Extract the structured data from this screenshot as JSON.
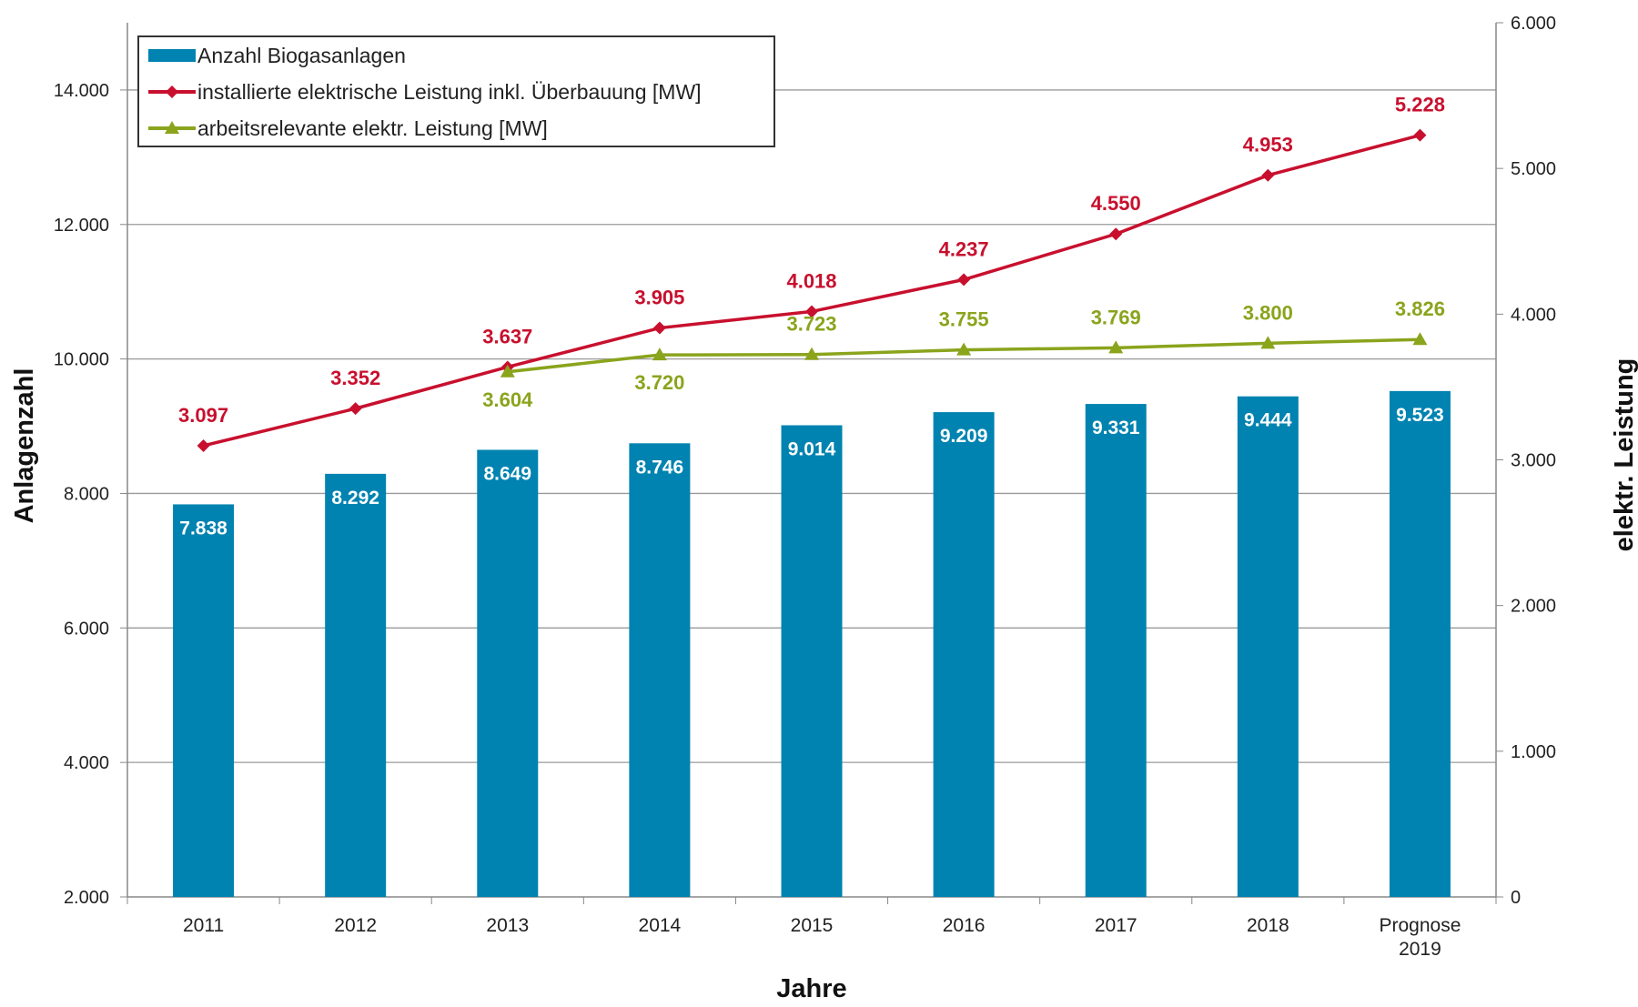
{
  "chart_data": {
    "type": "bar+line",
    "xlabel": "Jahre",
    "ylabel_left": "Anlagenzahl",
    "ylabel_right": "elektr. Leistung",
    "ylim_left": [
      2000,
      15000
    ],
    "ylim_right": [
      0,
      6000
    ],
    "yticks_left": [
      "2.000",
      "4.000",
      "6.000",
      "8.000",
      "10.000",
      "12.000",
      "14.000"
    ],
    "yticks_left_values": [
      2000,
      4000,
      6000,
      8000,
      10000,
      12000,
      14000
    ],
    "yticks_right": [
      "0",
      "1.000",
      "2.000",
      "3.000",
      "4.000",
      "5.000",
      "6.000"
    ],
    "yticks_right_values": [
      0,
      1000,
      2000,
      3000,
      4000,
      5000,
      6000
    ],
    "grid": true,
    "legend_placement": "top-left",
    "categories": [
      [
        "2011"
      ],
      [
        "2012"
      ],
      [
        "2013"
      ],
      [
        "2014"
      ],
      [
        "2015"
      ],
      [
        "2016"
      ],
      [
        "2017"
      ],
      [
        "2018"
      ],
      [
        "Prognose",
        "2019"
      ]
    ],
    "series": [
      {
        "name": "Anzahl Biogasanlagen",
        "type": "bar",
        "axis": "left",
        "color": "#0083b0",
        "values": [
          7838,
          8292,
          8649,
          8746,
          9014,
          9209,
          9331,
          9444,
          9523
        ],
        "labels": [
          "7.838",
          "8.292",
          "8.649",
          "8.746",
          "9.014",
          "9.209",
          "9.331",
          "9.444",
          "9.523"
        ]
      },
      {
        "name": "installierte elektrische Leistung inkl. Überbauung [MW]",
        "type": "line",
        "axis": "right",
        "color": "#c8102e",
        "marker": "diamond",
        "values": [
          3097,
          3352,
          3637,
          3905,
          4018,
          4237,
          4550,
          4953,
          5228
        ],
        "labels": [
          "3.097",
          "3.352",
          "3.637",
          "3.905",
          "4.018",
          "4.237",
          "4.550",
          "4.953",
          "5.228"
        ]
      },
      {
        "name": "arbeitsrelevante elektr. Leistung [MW]",
        "type": "line",
        "axis": "right",
        "color": "#8aa41c",
        "marker": "triangle",
        "values": [
          null,
          null,
          3604,
          3720,
          3723,
          3755,
          3769,
          3800,
          3826
        ],
        "labels": [
          null,
          null,
          "3.604",
          "3.720",
          "3.723",
          "3.755",
          "3.769",
          "3.800",
          "3.826"
        ],
        "label_position": [
          null,
          null,
          "below",
          "below",
          "above",
          "above",
          "above",
          "above",
          "above"
        ]
      }
    ]
  }
}
